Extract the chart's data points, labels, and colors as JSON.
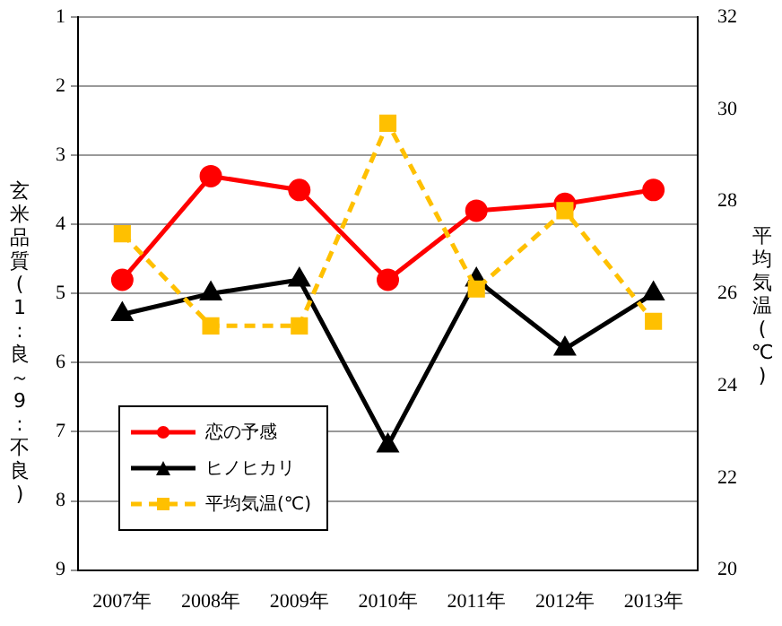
{
  "chart_data": {
    "type": "line",
    "categories": [
      "2007年",
      "2008年",
      "2009年",
      "2010年",
      "2011年",
      "2012年",
      "2013年"
    ],
    "ylabel": "玄米品質(1:良～9:不良)",
    "y2label": "平均気温(℃)",
    "ylim": [
      9,
      1
    ],
    "yticks": [
      1,
      2,
      3,
      4,
      5,
      6,
      7,
      8,
      9
    ],
    "y2lim": [
      20,
      32
    ],
    "y2ticks": [
      20,
      22,
      24,
      26,
      28,
      30,
      32
    ],
    "grid": "y",
    "legend": "bottom left",
    "series": [
      {
        "name": "恋の予感",
        "color": "#ff0000",
        "marker": "circle",
        "line_style": "solid",
        "values": [
          4.8,
          3.3,
          3.5,
          4.8,
          3.8,
          3.7,
          3.5
        ]
      },
      {
        "name": "ヒノヒカリ",
        "color": "#000000",
        "marker": "triangle",
        "line_style": "solid",
        "values": [
          5.3,
          5.0,
          4.8,
          7.2,
          4.8,
          5.8,
          5.0
        ]
      },
      {
        "name": "平均気温(℃)",
        "color": "#ffc000",
        "marker": "square",
        "line_style": "dashed",
        "axis": "y2",
        "values": [
          27.3,
          25.3,
          25.3,
          29.7,
          26.1,
          27.8,
          25.4
        ]
      }
    ]
  }
}
